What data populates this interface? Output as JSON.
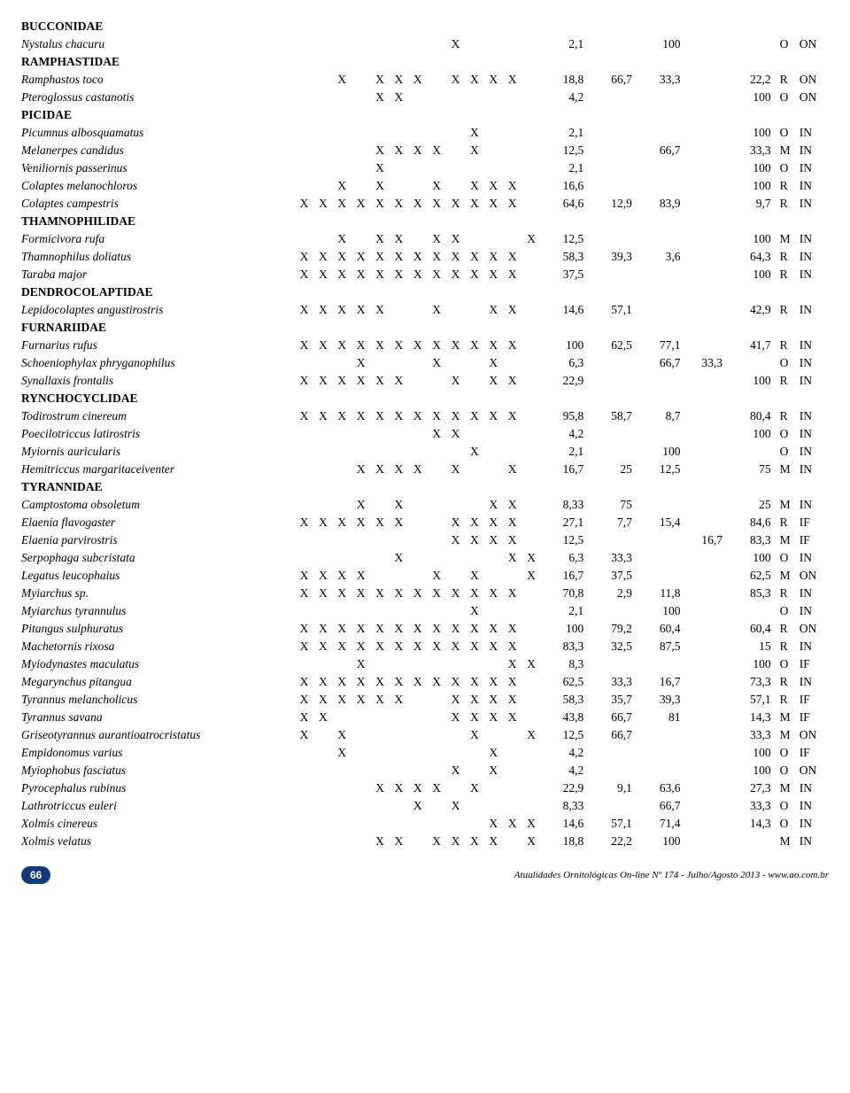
{
  "footer": {
    "page": "66",
    "text": "Atualidades Ornitológicas On-line Nº 174 - Julho/Agosto 2013 - www.ao.com.br"
  },
  "col_widths": {
    "name": 260,
    "x": 18,
    "num_small": 40,
    "num_med": 46,
    "abun": 22,
    "stat": 28
  },
  "rows": [
    {
      "type": "family",
      "name": "BUCCONIDAE"
    },
    {
      "type": "species",
      "name": "Nystalus chacuru",
      "x": [
        "",
        "",
        "",
        "",
        "",
        "",
        "",
        "",
        "X",
        "",
        "",
        "",
        ""
      ],
      "v": [
        "2,1",
        "",
        "100",
        "",
        "",
        "O",
        "ON"
      ]
    },
    {
      "type": "family",
      "name": "RAMPHASTIDAE"
    },
    {
      "type": "species",
      "name": "Ramphastos toco",
      "x": [
        "",
        "",
        "X",
        "",
        "X",
        "X",
        "X",
        "",
        "X",
        "X",
        "X",
        "X",
        ""
      ],
      "v": [
        "18,8",
        "66,7",
        "33,3",
        "",
        "22,2",
        "R",
        "ON"
      ]
    },
    {
      "type": "species",
      "name": "Pteroglossus castanotis",
      "x": [
        "",
        "",
        "",
        "",
        "X",
        "X",
        "",
        "",
        "",
        "",
        "",
        "",
        ""
      ],
      "v": [
        "4,2",
        "",
        "",
        "",
        "100",
        "O",
        "ON"
      ]
    },
    {
      "type": "family",
      "name": "PICIDAE"
    },
    {
      "type": "species",
      "name": "Picumnus albosquamatus",
      "x": [
        "",
        "",
        "",
        "",
        "",
        "",
        "",
        "",
        "",
        "X",
        "",
        "",
        ""
      ],
      "v": [
        "2,1",
        "",
        "",
        "",
        "100",
        "O",
        "IN"
      ]
    },
    {
      "type": "species",
      "name": "Melanerpes candidus",
      "x": [
        "",
        "",
        "",
        "",
        "X",
        "X",
        "X",
        "X",
        "",
        "X",
        "",
        "",
        ""
      ],
      "v": [
        "12,5",
        "",
        "66,7",
        "",
        "33,3",
        "M",
        "IN"
      ]
    },
    {
      "type": "species",
      "name": "Veniliornis passerinus",
      "x": [
        "",
        "",
        "",
        "",
        "X",
        "",
        "",
        "",
        "",
        "",
        "",
        "",
        ""
      ],
      "v": [
        "2,1",
        "",
        "",
        "",
        "100",
        "O",
        "IN"
      ]
    },
    {
      "type": "species",
      "name": "Colaptes melanochloros",
      "x": [
        "",
        "",
        "X",
        "",
        "X",
        "",
        "",
        "X",
        "",
        "X",
        "X",
        "X",
        ""
      ],
      "v": [
        "16,6",
        "",
        "",
        "",
        "100",
        "R",
        "IN"
      ]
    },
    {
      "type": "species",
      "name": "Colaptes campestris",
      "x": [
        "X",
        "X",
        "X",
        "X",
        "X",
        "X",
        "X",
        "X",
        "X",
        "X",
        "X",
        "X",
        ""
      ],
      "v": [
        "64,6",
        "12,9",
        "83,9",
        "",
        "9,7",
        "R",
        "IN"
      ]
    },
    {
      "type": "family",
      "name": "THAMNOPHILIDAE"
    },
    {
      "type": "species",
      "name": "Formicivora rufa",
      "x": [
        "",
        "",
        "X",
        "",
        "X",
        "X",
        "",
        "X",
        "X",
        "",
        "",
        "",
        "X"
      ],
      "v": [
        "12,5",
        "",
        "",
        "",
        "100",
        "M",
        "IN"
      ]
    },
    {
      "type": "species",
      "name": "Thamnophilus doliatus",
      "x": [
        "X",
        "X",
        "X",
        "X",
        "X",
        "X",
        "X",
        "X",
        "X",
        "X",
        "X",
        "X",
        ""
      ],
      "v": [
        "58,3",
        "39,3",
        "3,6",
        "",
        "64,3",
        "R",
        "IN"
      ]
    },
    {
      "type": "species",
      "name": "Taraba major",
      "x": [
        "X",
        "X",
        "X",
        "X",
        "X",
        "X",
        "X",
        "X",
        "X",
        "X",
        "X",
        "X",
        ""
      ],
      "v": [
        "37,5",
        "",
        "",
        "",
        "100",
        "R",
        "IN"
      ]
    },
    {
      "type": "family",
      "name": "DENDROCOLAPTIDAE"
    },
    {
      "type": "species",
      "name": "Lepidocolaptes angustirostris",
      "x": [
        "X",
        "X",
        "X",
        "X",
        "X",
        "",
        "",
        "X",
        "",
        "",
        "X",
        "X",
        ""
      ],
      "v": [
        "14,6",
        "57,1",
        "",
        "",
        "42,9",
        "R",
        "IN"
      ]
    },
    {
      "type": "family",
      "name": "FURNARIIDAE"
    },
    {
      "type": "species",
      "name": "Furnarius rufus",
      "x": [
        "X",
        "X",
        "X",
        "X",
        "X",
        "X",
        "X",
        "X",
        "X",
        "X",
        "X",
        "X",
        ""
      ],
      "v": [
        "100",
        "62,5",
        "77,1",
        "",
        "41,7",
        "R",
        "IN"
      ]
    },
    {
      "type": "species",
      "name": "Schoeniophylax phryganophilus",
      "x": [
        "",
        "",
        "",
        "X",
        "",
        "",
        "",
        "X",
        "",
        "",
        "X",
        "",
        ""
      ],
      "v": [
        "6,3",
        "",
        "66,7",
        "33,3",
        "",
        "O",
        "IN"
      ]
    },
    {
      "type": "species",
      "name": "Synallaxis frontalis",
      "x": [
        "X",
        "X",
        "X",
        "X",
        "X",
        "X",
        "",
        "",
        "X",
        "",
        "X",
        "X",
        ""
      ],
      "v": [
        "22,9",
        "",
        "",
        "",
        "100",
        "R",
        "IN"
      ]
    },
    {
      "type": "family",
      "name": "RYNCHOCYCLIDAE"
    },
    {
      "type": "species",
      "name": "Todirostrum cinereum",
      "x": [
        "X",
        "X",
        "X",
        "X",
        "X",
        "X",
        "X",
        "X",
        "X",
        "X",
        "X",
        "X",
        ""
      ],
      "v": [
        "95,8",
        "58,7",
        "8,7",
        "",
        "80,4",
        "R",
        "IN"
      ]
    },
    {
      "type": "species",
      "name": "Poecilotriccus latirostris",
      "x": [
        "",
        "",
        "",
        "",
        "",
        "",
        "",
        "X",
        "X",
        "",
        "",
        "",
        ""
      ],
      "v": [
        "4,2",
        "",
        "",
        "",
        "100",
        "O",
        "IN"
      ]
    },
    {
      "type": "species",
      "name": "Myiornis auricularis",
      "x": [
        "",
        "",
        "",
        "",
        "",
        "",
        "",
        "",
        "",
        "X",
        "",
        "",
        ""
      ],
      "v": [
        "2,1",
        "",
        "100",
        "",
        "",
        "O",
        "IN"
      ]
    },
    {
      "type": "species",
      "name": "Hemitriccus margaritaceiventer",
      "x": [
        "",
        "",
        "",
        "X",
        "X",
        "X",
        "X",
        "",
        "X",
        "",
        "",
        "X",
        ""
      ],
      "v": [
        "16,7",
        "25",
        "12,5",
        "",
        "75",
        "M",
        "IN"
      ]
    },
    {
      "type": "family",
      "name": "TYRANNIDAE"
    },
    {
      "type": "species",
      "name": "Camptostoma obsoletum",
      "x": [
        "",
        "",
        "",
        "X",
        "",
        "X",
        "",
        "",
        "",
        "",
        "X",
        "X",
        ""
      ],
      "v": [
        "8,33",
        "75",
        "",
        "",
        "25",
        "M",
        "IN"
      ]
    },
    {
      "type": "species",
      "name": "Elaenia flavogaster",
      "x": [
        "X",
        "X",
        "X",
        "X",
        "X",
        "X",
        "",
        "",
        "X",
        "X",
        "X",
        "X",
        ""
      ],
      "v": [
        "27,1",
        "7,7",
        "15,4",
        "",
        "84,6",
        "R",
        "IF"
      ]
    },
    {
      "type": "species",
      "name": "Elaenia parvirostris",
      "x": [
        "",
        "",
        "",
        "",
        "",
        "",
        "",
        "",
        "X",
        "X",
        "X",
        "X",
        ""
      ],
      "v": [
        "12,5",
        "",
        "",
        "16,7",
        "83,3",
        "M",
        "IF"
      ]
    },
    {
      "type": "species",
      "name": "Serpophaga subcristata",
      "x": [
        "",
        "",
        "",
        "",
        "",
        "X",
        "",
        "",
        "",
        "",
        "",
        "X",
        "X"
      ],
      "v": [
        "6,3",
        "33,3",
        "",
        "",
        "100",
        "O",
        "IN"
      ]
    },
    {
      "type": "species",
      "name": "Legatus leucophaius",
      "x": [
        "X",
        "X",
        "X",
        "X",
        "",
        "",
        "",
        "X",
        "",
        "X",
        "",
        "",
        "X"
      ],
      "v": [
        "16,7",
        "37,5",
        "",
        "",
        "62,5",
        "M",
        "ON"
      ]
    },
    {
      "type": "species",
      "name": "Myiarchus sp.",
      "x": [
        "X",
        "X",
        "X",
        "X",
        "X",
        "X",
        "X",
        "X",
        "X",
        "X",
        "X",
        "X",
        ""
      ],
      "v": [
        "70,8",
        "2,9",
        "11,8",
        "",
        "85,3",
        "R",
        "IN"
      ]
    },
    {
      "type": "species",
      "name": "Myiarchus tyrannulus",
      "x": [
        "",
        "",
        "",
        "",
        "",
        "",
        "",
        "",
        "",
        "X",
        "",
        "",
        ""
      ],
      "v": [
        "2,1",
        "",
        "100",
        "",
        "",
        "O",
        "IN"
      ]
    },
    {
      "type": "species",
      "name": "Pitangus sulphuratus",
      "x": [
        "X",
        "X",
        "X",
        "X",
        "X",
        "X",
        "X",
        "X",
        "X",
        "X",
        "X",
        "X",
        ""
      ],
      "v": [
        "100",
        "79,2",
        "60,4",
        "",
        "60,4",
        "R",
        "ON"
      ]
    },
    {
      "type": "species",
      "name": "Machetornis rixosa",
      "x": [
        "X",
        "X",
        "X",
        "X",
        "X",
        "X",
        "X",
        "X",
        "X",
        "X",
        "X",
        "X",
        ""
      ],
      "v": [
        "83,3",
        "32,5",
        "87,5",
        "",
        "15",
        "R",
        "IN"
      ]
    },
    {
      "type": "species",
      "name": "Myiodynastes maculatus",
      "x": [
        "",
        "",
        "",
        "X",
        "",
        "",
        "",
        "",
        "",
        "",
        "",
        "X",
        "X"
      ],
      "v": [
        "8,3",
        "",
        "",
        "",
        "100",
        "O",
        "IF"
      ]
    },
    {
      "type": "species",
      "name": "Megarynchus pitangua",
      "x": [
        "X",
        "X",
        "X",
        "X",
        "X",
        "X",
        "X",
        "X",
        "X",
        "X",
        "X",
        "X",
        ""
      ],
      "v": [
        "62,5",
        "33,3",
        "16,7",
        "",
        "73,3",
        "R",
        "IN"
      ]
    },
    {
      "type": "species",
      "name": "Tyrannus melancholicus",
      "x": [
        "X",
        "X",
        "X",
        "X",
        "X",
        "X",
        "",
        "",
        "X",
        "X",
        "X",
        "X",
        ""
      ],
      "v": [
        "58,3",
        "35,7",
        "39,3",
        "",
        "57,1",
        "R",
        "IF"
      ]
    },
    {
      "type": "species",
      "name": "Tyrannus savana",
      "x": [
        "X",
        "X",
        "",
        "",
        "",
        "",
        "",
        "",
        "X",
        "X",
        "X",
        "X",
        ""
      ],
      "v": [
        "43,8",
        "66,7",
        "81",
        "",
        "14,3",
        "M",
        "IF"
      ]
    },
    {
      "type": "species",
      "name": "Griseotyrannus aurantioatrocristatus",
      "x": [
        "X",
        "",
        "X",
        "",
        "",
        "",
        "",
        "",
        "",
        "X",
        "",
        "",
        "X"
      ],
      "v": [
        "12,5",
        "66,7",
        "",
        "",
        "33,3",
        "M",
        "ON"
      ]
    },
    {
      "type": "species",
      "name": "Empidonomus varius",
      "x": [
        "",
        "",
        "X",
        "",
        "",
        "",
        "",
        "",
        "",
        "",
        "X",
        "",
        ""
      ],
      "v": [
        "4,2",
        "",
        "",
        "",
        "100",
        "O",
        "IF"
      ]
    },
    {
      "type": "species",
      "name": "Myiophobus fasciatus",
      "x": [
        "",
        "",
        "",
        "",
        "",
        "",
        "",
        "",
        "X",
        "",
        "X",
        "",
        ""
      ],
      "v": [
        "4,2",
        "",
        "",
        "",
        "100",
        "O",
        "ON"
      ]
    },
    {
      "type": "species",
      "name": "Pyrocephalus rubinus",
      "x": [
        "",
        "",
        "",
        "",
        "X",
        "X",
        "X",
        "X",
        "",
        "X",
        "",
        "",
        ""
      ],
      "v": [
        "22,9",
        "9,1",
        "63,6",
        "",
        "27,3",
        "M",
        "IN"
      ]
    },
    {
      "type": "species",
      "name": "Lathrotriccus euleri",
      "x": [
        "",
        "",
        "",
        "",
        "",
        "",
        "X",
        "",
        "X",
        "",
        "",
        "",
        ""
      ],
      "v": [
        "8,33",
        "",
        "66,7",
        "",
        "33,3",
        "O",
        "IN"
      ]
    },
    {
      "type": "species",
      "name": "Xolmis cinereus",
      "x": [
        "",
        "",
        "",
        "",
        "",
        "",
        "",
        "",
        "",
        "",
        "X",
        "X",
        "X"
      ],
      "v": [
        "14,6",
        "57,1",
        "71,4",
        "",
        "14,3",
        "O",
        "IN"
      ]
    },
    {
      "type": "species",
      "name": "Xolmis velatus",
      "x": [
        "",
        "",
        "",
        "",
        "X",
        "X",
        "",
        "X",
        "X",
        "X",
        "X",
        "",
        "X"
      ],
      "v": [
        "18,8",
        "22,2",
        "100",
        "",
        "",
        "M",
        "IN"
      ]
    }
  ]
}
